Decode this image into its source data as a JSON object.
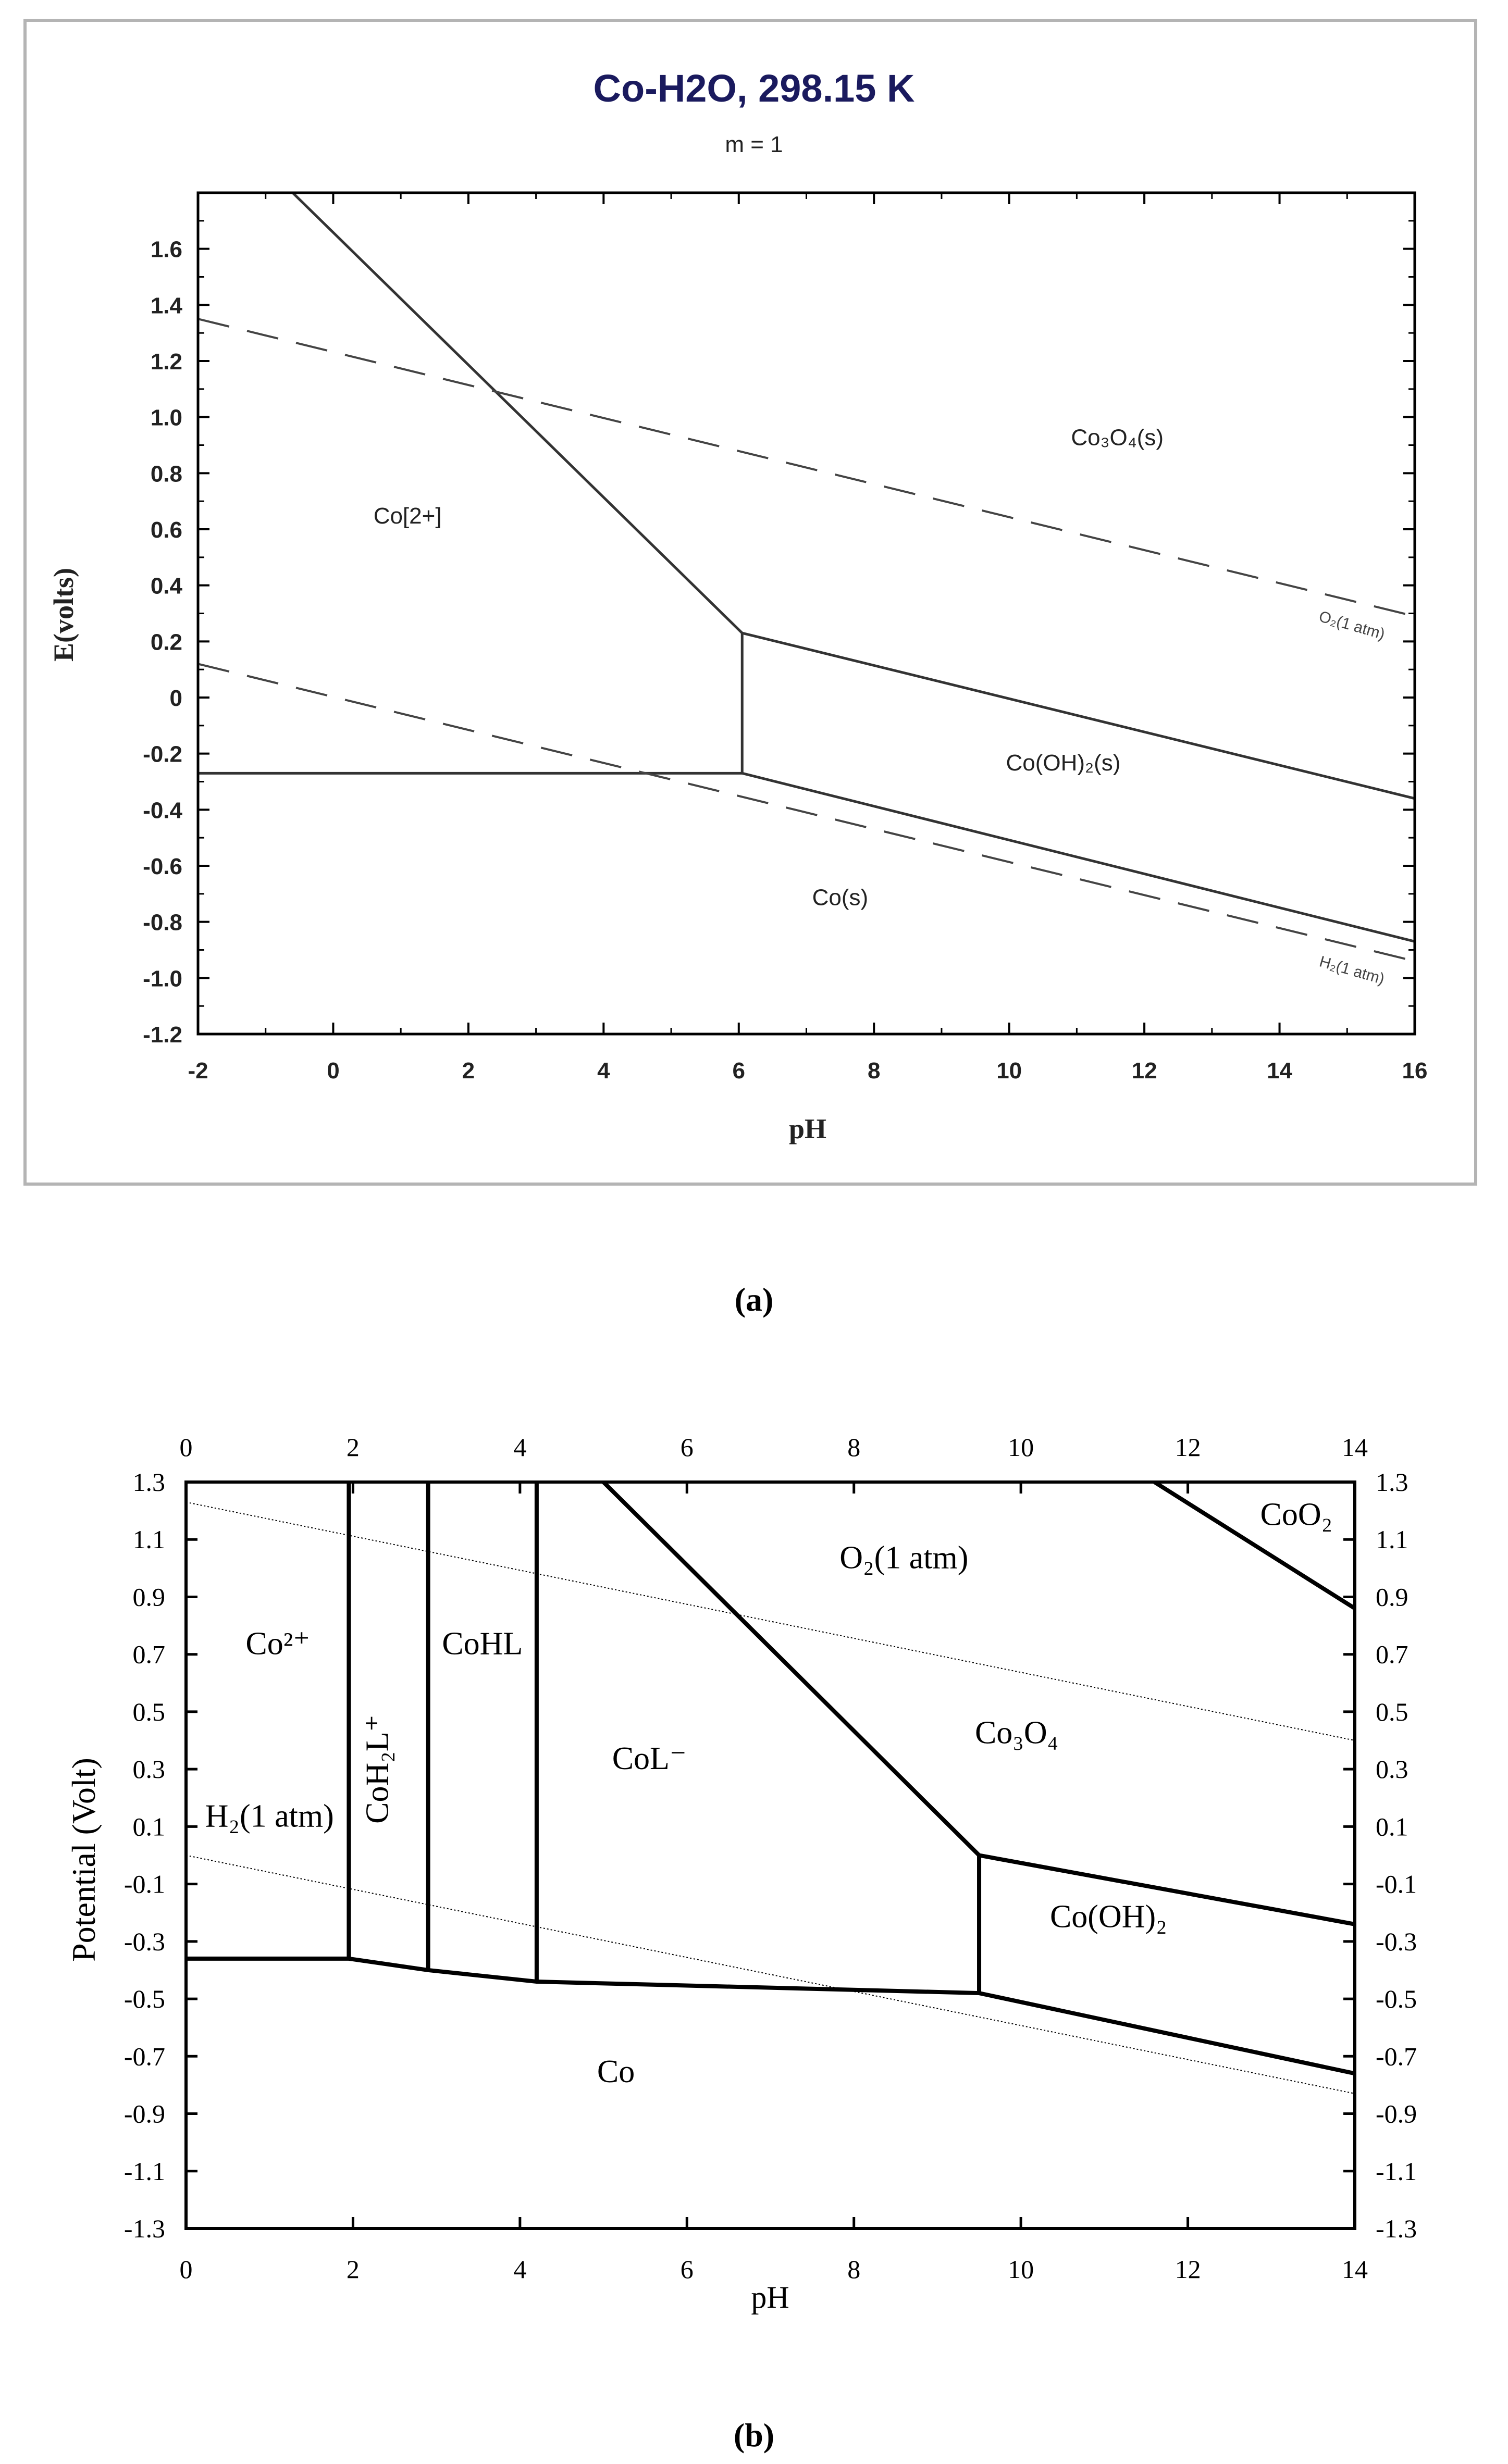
{
  "chart_data": [
    {
      "panel": "(a)",
      "type": "line",
      "chart_kind": "Pourbaix (E-pH) diagram",
      "title": "Co-H2O, 298.15 K",
      "subtitle": "m = 1",
      "xlabel": "pH",
      "ylabel": "E(volts)",
      "xlim": [
        -2,
        16
      ],
      "ylim": [
        -1.2,
        1.8
      ],
      "xticks": [
        -2,
        0,
        2,
        4,
        6,
        8,
        10,
        12,
        14,
        16
      ],
      "xtick_labels": [
        "-2",
        "0",
        "2",
        "4",
        "6",
        "8",
        "10",
        "12",
        "14",
        "16"
      ],
      "yticks": [
        -1.2,
        -1.0,
        -0.8,
        -0.6,
        -0.4,
        -0.2,
        0,
        0.2,
        0.4,
        0.6,
        0.8,
        1.0,
        1.2,
        1.4,
        1.6
      ],
      "ytick_labels": [
        "-1.2",
        "-1.0",
        "-0.8",
        "-0.6",
        "-0.4",
        "-0.2",
        "0",
        "0.2",
        "0.4",
        "0.6",
        "0.8",
        "1.0",
        "1.2",
        "1.4",
        "1.6"
      ],
      "series": [
        {
          "name": "Co(2+)/Co(s) boundary",
          "style": "solid",
          "points": [
            [
              -2,
              -0.27
            ],
            [
              6.05,
              -0.27
            ]
          ]
        },
        {
          "name": "Co(2+)/Co3O4 boundary",
          "style": "solid",
          "points": [
            [
              -0.6,
              1.8
            ],
            [
              6.05,
              0.23
            ]
          ]
        },
        {
          "name": "Co(2+)/Co(OH)2 boundary",
          "style": "solid",
          "points": [
            [
              6.05,
              -0.27
            ],
            [
              6.05,
              0.23
            ]
          ]
        },
        {
          "name": "Co(OH)2/Co3O4 boundary",
          "style": "solid",
          "points": [
            [
              6.05,
              0.23
            ],
            [
              16,
              -0.36
            ]
          ]
        },
        {
          "name": "Co(s)/Co(OH)2 boundary",
          "style": "solid",
          "points": [
            [
              6.05,
              -0.27
            ],
            [
              16,
              -0.87
            ]
          ]
        },
        {
          "name": "O2(1 atm)",
          "style": "dashed",
          "points": [
            [
              -2,
              1.35
            ],
            [
              16,
              0.29
            ]
          ]
        },
        {
          "name": "H2(1 atm)",
          "style": "dashed",
          "points": [
            [
              -2,
              0.12
            ],
            [
              16,
              -0.94
            ]
          ]
        }
      ],
      "region_labels": [
        {
          "label": "Co[2+]",
          "x": 1.1,
          "y": 0.62
        },
        {
          "label": "Co₃O₄(s)",
          "x": 11.6,
          "y": 0.9
        },
        {
          "label": "Co(OH)₂(s)",
          "x": 10.8,
          "y": -0.26
        },
        {
          "label": "Co(s)",
          "x": 7.5,
          "y": -0.74
        }
      ],
      "line_labels": [
        {
          "label": "O₂(1 atm)",
          "x": 15.05,
          "y": 0.24
        },
        {
          "label": "H₂(1 atm)",
          "x": 15.05,
          "y": -0.99
        }
      ]
    },
    {
      "panel": "(b)",
      "type": "line",
      "chart_kind": "Pourbaix (E-pH) diagram",
      "title": "",
      "xlabel": "pH",
      "ylabel": "Potential (Volt)",
      "xlim": [
        0,
        14
      ],
      "ylim": [
        -1.3,
        1.3
      ],
      "xticks": [
        0,
        2,
        4,
        6,
        8,
        10,
        12,
        14
      ],
      "xtick_labels": [
        "0",
        "2",
        "4",
        "6",
        "8",
        "10",
        "12",
        "14"
      ],
      "yticks": [
        -1.3,
        -1.1,
        -0.9,
        -0.7,
        -0.5,
        -0.3,
        -0.1,
        0.1,
        0.3,
        0.5,
        0.7,
        0.9,
        1.1,
        1.3
      ],
      "ytick_labels": [
        "-1.3",
        "-1.1",
        "-0.9",
        "-0.7",
        "-0.5",
        "-0.3",
        "-0.1",
        "0.1",
        "0.3",
        "0.5",
        "0.7",
        "0.9",
        "1.1",
        "1.3"
      ],
      "series": [
        {
          "name": "Co bottom boundary",
          "style": "solid",
          "points": [
            [
              0,
              -0.36
            ],
            [
              1.95,
              -0.36
            ],
            [
              2.9,
              -0.4
            ],
            [
              4.2,
              -0.44
            ],
            [
              9.5,
              -0.48
            ],
            [
              14,
              -0.76
            ]
          ]
        },
        {
          "name": "Co2+/CoH2L+ boundary",
          "style": "solid",
          "points": [
            [
              1.95,
              -0.36
            ],
            [
              1.95,
              1.3
            ]
          ]
        },
        {
          "name": "CoH2L+/CoHL boundary",
          "style": "solid",
          "points": [
            [
              2.9,
              -0.4
            ],
            [
              2.9,
              1.3
            ]
          ]
        },
        {
          "name": "CoHL/CoL- boundary",
          "style": "solid",
          "points": [
            [
              4.2,
              -0.44
            ],
            [
              4.2,
              1.3
            ]
          ]
        },
        {
          "name": "CoL-/Co3O4 boundary",
          "style": "solid",
          "points": [
            [
              5.0,
              1.3
            ],
            [
              9.5,
              0.0
            ]
          ]
        },
        {
          "name": "CoL-/Co(OH)2 boundary",
          "style": "solid",
          "points": [
            [
              9.5,
              0.0
            ],
            [
              9.5,
              -0.48
            ]
          ]
        },
        {
          "name": "Co(OH)2/Co3O4 boundary",
          "style": "solid",
          "points": [
            [
              9.5,
              0.0
            ],
            [
              14,
              -0.24
            ]
          ]
        },
        {
          "name": "Co3O4/CoO2 boundary",
          "style": "solid",
          "points": [
            [
              11.6,
              1.3
            ],
            [
              14,
              0.86
            ]
          ]
        },
        {
          "name": "O2(1 atm)",
          "style": "dotted",
          "points": [
            [
              0,
              1.23
            ],
            [
              14,
              0.4
            ]
          ]
        },
        {
          "name": "H2(1 atm)",
          "style": "dotted",
          "points": [
            [
              0,
              0.0
            ],
            [
              14,
              -0.83
            ]
          ]
        }
      ],
      "region_labels": [
        {
          "label": "Co²⁺",
          "x": 1.1,
          "y": 0.7
        },
        {
          "label": "CoH₂L⁺",
          "x": 2.42,
          "y": 0.3
        },
        {
          "label": "CoHL",
          "x": 3.55,
          "y": 0.7
        },
        {
          "label": "CoL⁻",
          "x": 5.55,
          "y": 0.3
        },
        {
          "label": "O₂(1 atm)",
          "x": 8.6,
          "y": 1.0
        },
        {
          "label": "CoO₂",
          "x": 13.3,
          "y": 1.15
        },
        {
          "label": "Co₃O₄",
          "x": 9.95,
          "y": 0.39
        },
        {
          "label": "H₂(1 atm)",
          "x": 1.0,
          "y": 0.1
        },
        {
          "label": "Co(OH)₂",
          "x": 11.05,
          "y": -0.25
        },
        {
          "label": "Co",
          "x": 5.15,
          "y": -0.79
        }
      ]
    }
  ],
  "captions": {
    "a": "(a)",
    "b": "(b)"
  }
}
